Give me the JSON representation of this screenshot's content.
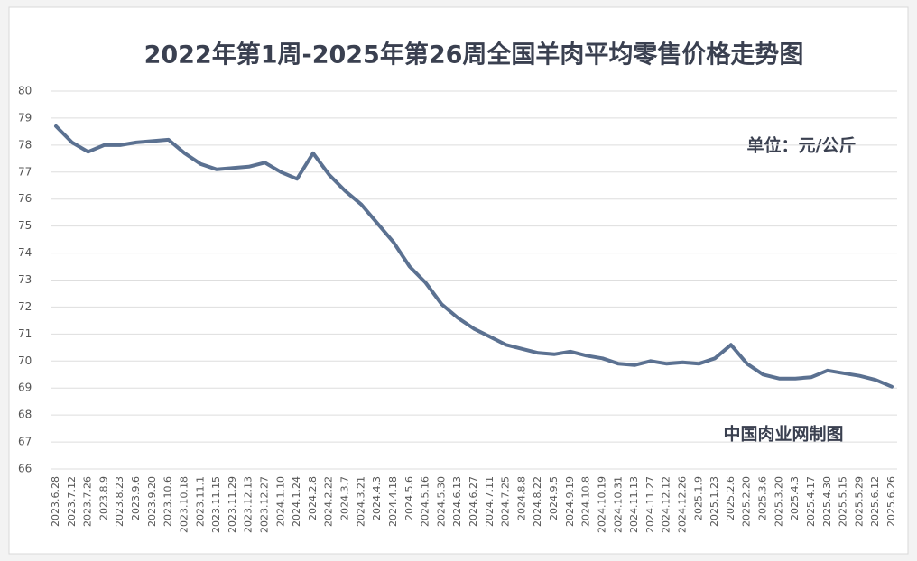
{
  "chart_data": {
    "type": "line",
    "title": "2022年第1周-2025年第26周全国羊肉平均零售价格走势图",
    "unit_note": "单位：元/公斤",
    "source_note": "中国肉业网制图",
    "categories": [
      "2023.6.28",
      "2023.7.12",
      "2023.7.26",
      "2023.8.9",
      "2023.8.23",
      "2023.9.6",
      "2023.9.20",
      "2023.10.6",
      "2023.10.18",
      "2023.11.1",
      "2023.11.15",
      "2023.11.29",
      "2023.12.13",
      "2023.12.27",
      "2024.1.10",
      "2024.1.24",
      "2024.2.8",
      "2024.2.22",
      "2024.3.7",
      "2024.3.21",
      "2024.4.3",
      "2024.4.18",
      "2024.5.6",
      "2024.5.16",
      "2024.5.30",
      "2024.6.13",
      "2024.6.27",
      "2024.7.11",
      "2024.7.25",
      "2024.8.8",
      "2024.8.22",
      "2024.9.5",
      "2024.9.19",
      "2024.10.8",
      "2024.10.19",
      "2024.10.31",
      "2024.11.13",
      "2024.11.27",
      "2024.12.12",
      "2024.12.26",
      "2025.1.9",
      "2025.1.23",
      "2025.2.6",
      "2025.2.20",
      "2025.3.6",
      "2025.3.20",
      "2025.4.3",
      "2025.4.17",
      "2025.4.30",
      "2025.5.15",
      "2025.5.29",
      "2025.6.12",
      "2025.6.26"
    ],
    "values": [
      78.7,
      78.1,
      77.75,
      78.0,
      78.0,
      78.1,
      78.15,
      78.2,
      77.7,
      77.3,
      77.1,
      77.15,
      77.2,
      77.35,
      77.0,
      76.75,
      77.7,
      76.9,
      76.3,
      75.8,
      75.1,
      74.4,
      73.5,
      72.9,
      72.1,
      71.6,
      71.2,
      70.9,
      70.6,
      70.45,
      70.3,
      70.25,
      70.35,
      70.2,
      70.1,
      69.9,
      69.85,
      70.0,
      69.9,
      69.95,
      69.9,
      70.1,
      70.6,
      69.9,
      69.5,
      69.35,
      69.35,
      69.4,
      69.65,
      69.55,
      69.45,
      69.3,
      69.05
    ],
    "color": "#5b7191",
    "ylim": [
      66,
      80
    ],
    "yticks": [
      66,
      67,
      68,
      69,
      70,
      71,
      72,
      73,
      74,
      75,
      76,
      77,
      78,
      79,
      80
    ],
    "grid": true
  }
}
